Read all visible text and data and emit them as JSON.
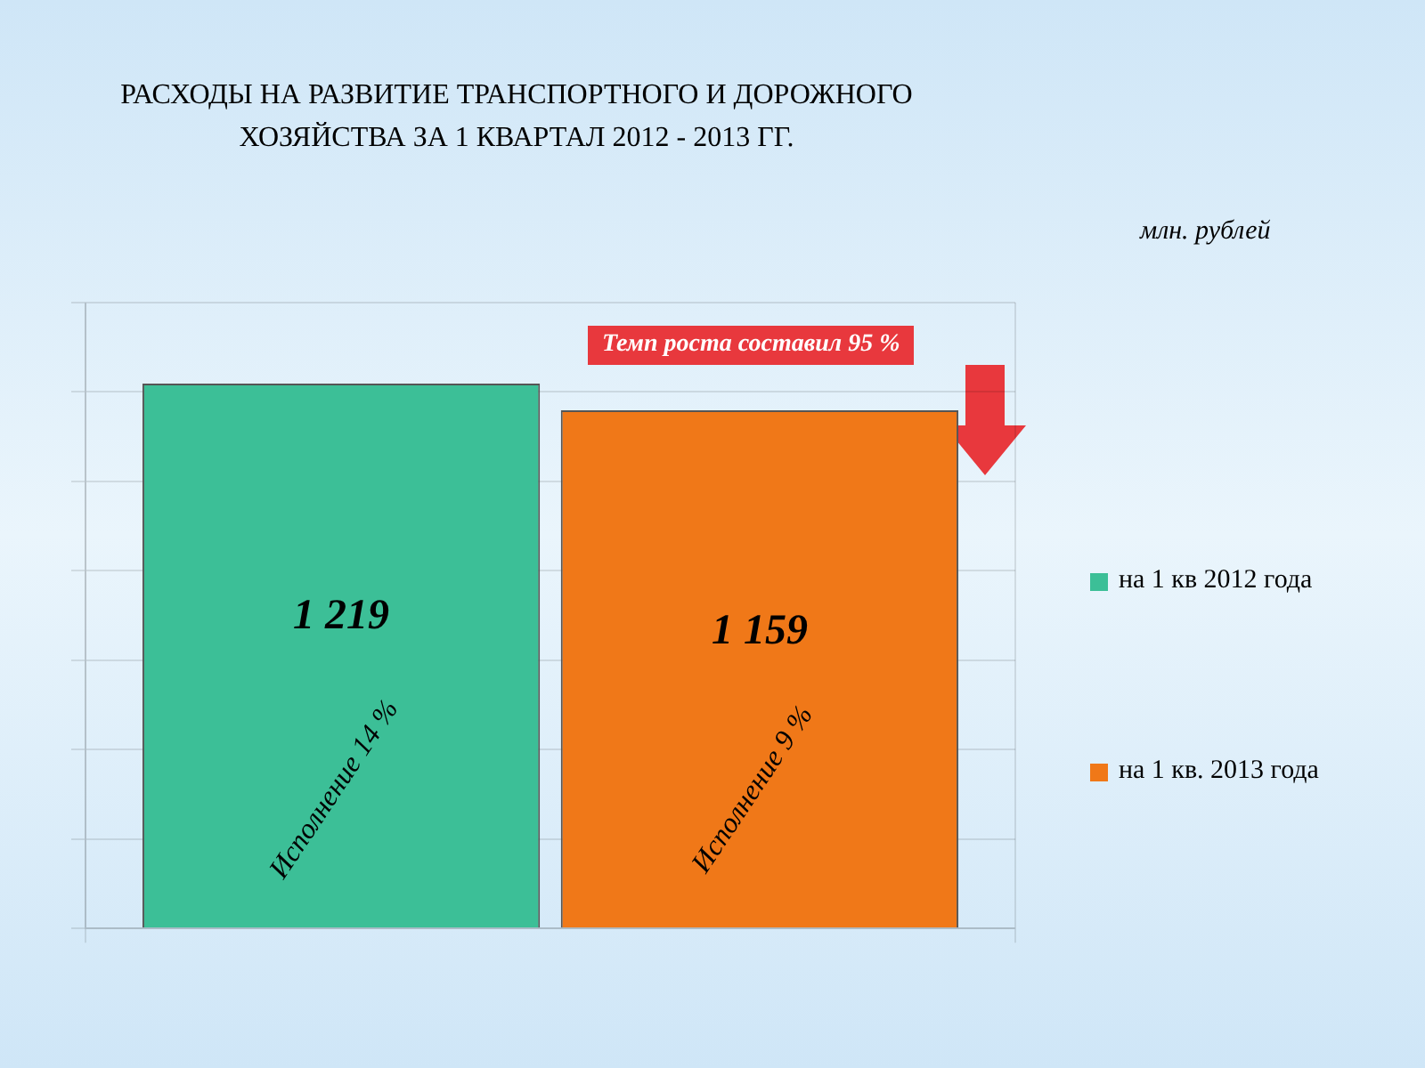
{
  "chart_data": {
    "type": "bar",
    "title": "РАСХОДЫ НА РАЗВИТИЕ ТРАНСПОРТНОГО И ДОРОЖНОГО ХОЗЯЙСТВА ЗА 1 КВАРТАЛ 2012 - 2013 ГГ.",
    "categories": [
      null
    ],
    "series": [
      {
        "name": "на 1 кв 2012 года",
        "color": "#3cbf97",
        "values": [
          1219
        ],
        "value_labels": [
          "1 219"
        ]
      },
      {
        "name": "на 1 кв. 2013 года",
        "color": "#f07818",
        "values": [
          1159
        ],
        "value_labels": [
          "1 159"
        ]
      }
    ],
    "annotations": [
      "млн. рублей",
      "Темп роста составил 95 %",
      "Исполнение 14 %",
      "Исполнение 9 %"
    ],
    "grid": true,
    "legend": "right"
  }
}
